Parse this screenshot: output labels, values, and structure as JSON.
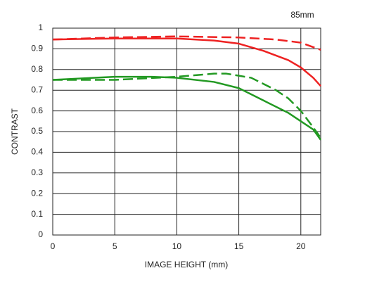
{
  "chart_data": {
    "type": "line",
    "annotation": "85mm",
    "xlabel": "IMAGE HEIGHT (mm)",
    "ylabel": "CONTRAST",
    "xlim": [
      0,
      21.6
    ],
    "xticks": [
      0,
      5,
      10,
      15,
      20
    ],
    "ylim": [
      0,
      1
    ],
    "yticks": [
      0,
      0.1,
      0.2,
      0.3,
      0.4,
      0.5,
      0.6,
      0.7,
      0.8,
      0.9,
      1
    ],
    "grid": true,
    "series": [
      {
        "color": "#ee2222",
        "dashed": false,
        "x": [
          0,
          5,
          10,
          13,
          15,
          17,
          19,
          20,
          21,
          21.6
        ],
        "values": [
          0.945,
          0.95,
          0.95,
          0.94,
          0.925,
          0.89,
          0.845,
          0.81,
          0.76,
          0.72
        ]
      },
      {
        "color": "#ee2222",
        "dashed": true,
        "x": [
          0,
          5,
          10,
          15,
          18,
          20,
          21.6
        ],
        "values": [
          0.945,
          0.955,
          0.96,
          0.955,
          0.945,
          0.93,
          0.895
        ]
      },
      {
        "color": "#229922",
        "dashed": false,
        "x": [
          0,
          5,
          8,
          10,
          13,
          15,
          17,
          19,
          20,
          21,
          21.6
        ],
        "values": [
          0.75,
          0.765,
          0.765,
          0.76,
          0.74,
          0.71,
          0.65,
          0.59,
          0.55,
          0.51,
          0.46
        ]
      },
      {
        "color": "#229922",
        "dashed": true,
        "x": [
          0,
          5,
          10,
          13,
          14,
          16,
          18,
          19,
          20,
          21,
          21.6
        ],
        "values": [
          0.75,
          0.75,
          0.765,
          0.78,
          0.78,
          0.76,
          0.7,
          0.66,
          0.6,
          0.52,
          0.47
        ]
      }
    ]
  }
}
